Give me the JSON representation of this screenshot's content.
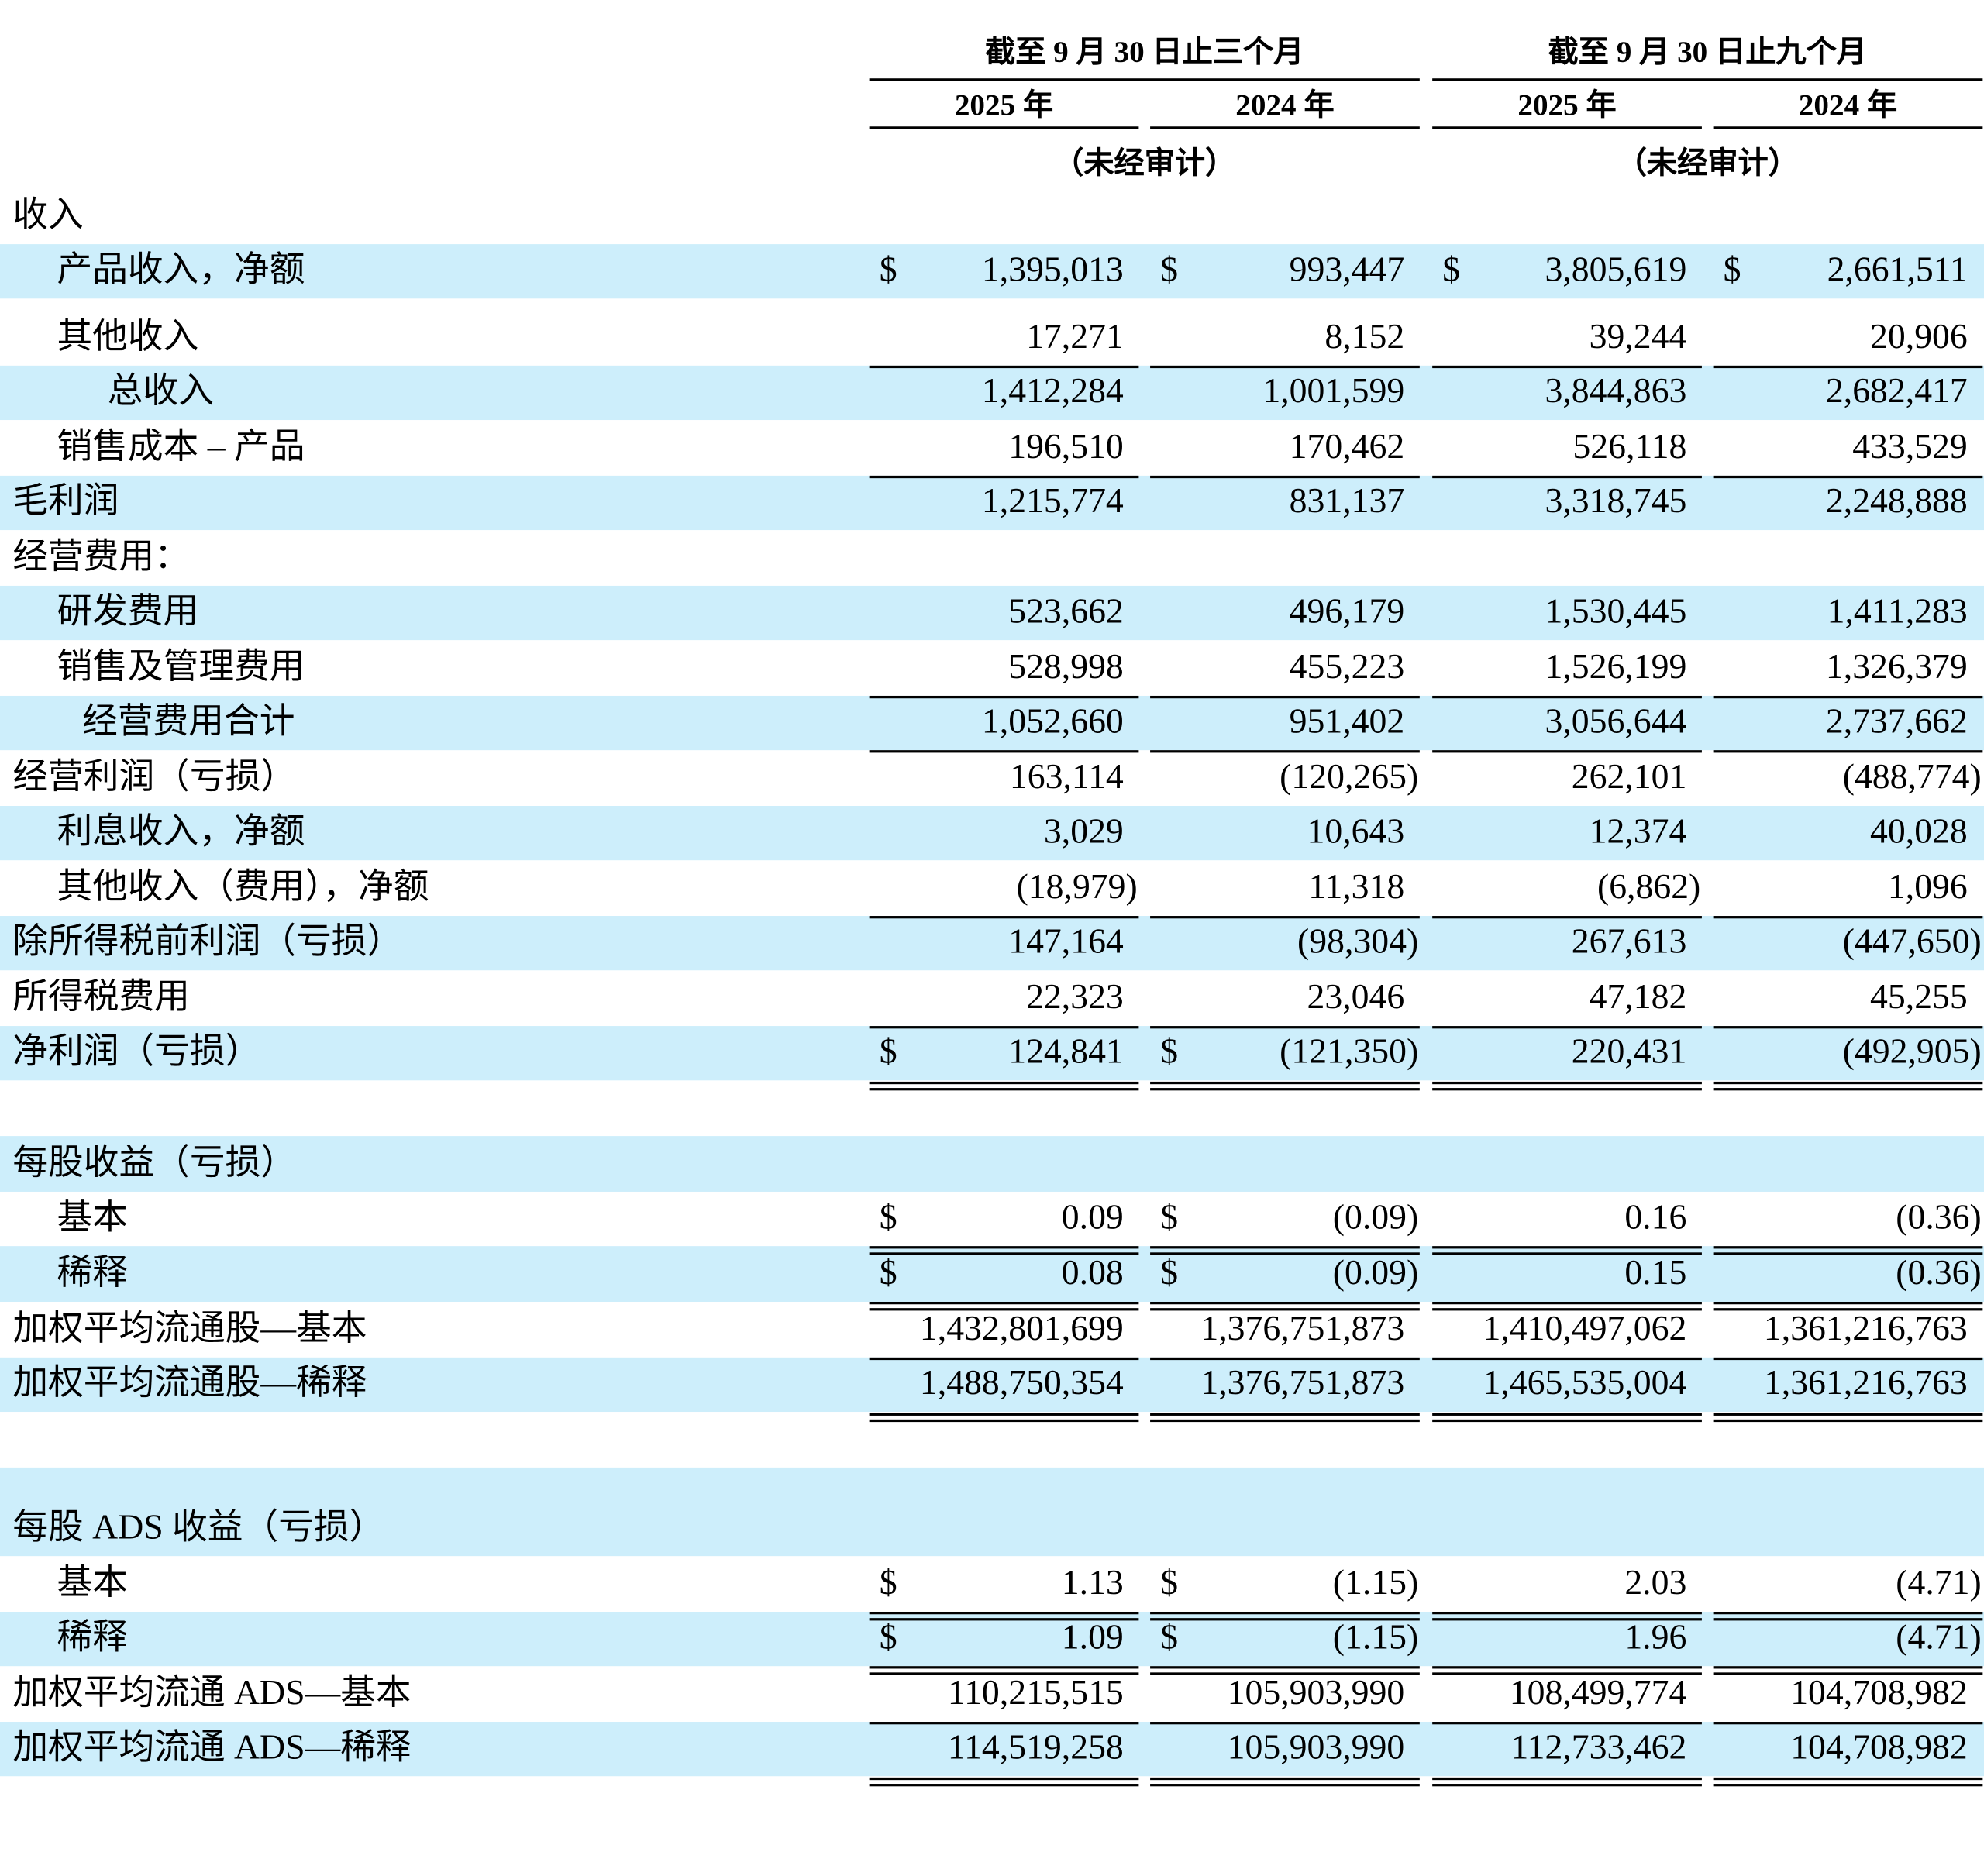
{
  "header": {
    "groups": [
      {
        "title": "截至 9 月 30 日止三个月",
        "years": [
          "2025 年",
          "2024 年"
        ],
        "note": "（未经审计）"
      },
      {
        "title": "截至 9 月 30 日止九个月",
        "years": [
          "2025 年",
          "2024 年"
        ],
        "note": "（未经审计）"
      }
    ]
  },
  "rows": [
    {
      "label": "收入"
    },
    {
      "label": "产品收入，净额",
      "cells": [
        {
          "currency": "$",
          "value": "1,395,013"
        },
        {
          "currency": "$",
          "value": "993,447"
        },
        {
          "currency": "$",
          "value": "3,805,619"
        },
        {
          "currency": "$",
          "value": "2,661,511"
        }
      ]
    },
    {
      "label": "其他收入",
      "cells": [
        {
          "value": "17,271"
        },
        {
          "value": "8,152"
        },
        {
          "value": "39,244"
        },
        {
          "value": "20,906"
        }
      ]
    },
    {
      "label": "总收入",
      "cells": [
        {
          "value": "1,412,284"
        },
        {
          "value": "1,001,599"
        },
        {
          "value": "3,844,863"
        },
        {
          "value": "2,682,417"
        }
      ]
    },
    {
      "label": "销售成本 – 产品",
      "cells": [
        {
          "value": "196,510"
        },
        {
          "value": "170,462"
        },
        {
          "value": "526,118"
        },
        {
          "value": "433,529"
        }
      ]
    },
    {
      "label": "毛利润",
      "cells": [
        {
          "value": "1,215,774"
        },
        {
          "value": "831,137"
        },
        {
          "value": "3,318,745"
        },
        {
          "value": "2,248,888"
        }
      ]
    },
    {
      "label": "经营费用："
    },
    {
      "label": "研发费用",
      "cells": [
        {
          "value": "523,662"
        },
        {
          "value": "496,179"
        },
        {
          "value": "1,530,445"
        },
        {
          "value": "1,411,283"
        }
      ]
    },
    {
      "label": "销售及管理费用",
      "cells": [
        {
          "value": "528,998"
        },
        {
          "value": "455,223"
        },
        {
          "value": "1,526,199"
        },
        {
          "value": "1,326,379"
        }
      ]
    },
    {
      "label": "经营费用合计",
      "cells": [
        {
          "value": "1,052,660"
        },
        {
          "value": "951,402"
        },
        {
          "value": "3,056,644"
        },
        {
          "value": "2,737,662"
        }
      ]
    },
    {
      "label": "经营利润（亏损）",
      "cells": [
        {
          "value": "163,114"
        },
        {
          "value": "(120,265)"
        },
        {
          "value": "262,101"
        },
        {
          "value": "(488,774)"
        }
      ]
    },
    {
      "label": "利息收入，净额",
      "cells": [
        {
          "value": "3,029"
        },
        {
          "value": "10,643"
        },
        {
          "value": "12,374"
        },
        {
          "value": "40,028"
        }
      ]
    },
    {
      "label": "其他收入（费用），净额",
      "cells": [
        {
          "value": "(18,979)"
        },
        {
          "value": "11,318"
        },
        {
          "value": "(6,862)"
        },
        {
          "value": "1,096"
        }
      ]
    },
    {
      "label": "除所得税前利润（亏损）",
      "cells": [
        {
          "value": "147,164"
        },
        {
          "value": "(98,304)"
        },
        {
          "value": "267,613"
        },
        {
          "value": "(447,650)"
        }
      ]
    },
    {
      "label": "所得税费用",
      "cells": [
        {
          "value": "22,323"
        },
        {
          "value": "23,046"
        },
        {
          "value": "47,182"
        },
        {
          "value": "45,255"
        }
      ]
    },
    {
      "label": "净利润（亏损）",
      "cells": [
        {
          "currency": "$",
          "value": "124,841"
        },
        {
          "currency": "$",
          "value": "(121,350)"
        },
        {
          "value": "220,431"
        },
        {
          "value": "(492,905)"
        }
      ]
    },
    {
      "label": "每股收益（亏损）"
    },
    {
      "label": "基本",
      "cells": [
        {
          "currency": "$",
          "value": "0.09"
        },
        {
          "currency": "$",
          "value": "(0.09)"
        },
        {
          "value": "0.16"
        },
        {
          "value": "(0.36)"
        }
      ]
    },
    {
      "label": "稀释",
      "cells": [
        {
          "currency": "$",
          "value": "0.08"
        },
        {
          "currency": "$",
          "value": "(0.09)"
        },
        {
          "value": "0.15"
        },
        {
          "value": "(0.36)"
        }
      ]
    },
    {
      "label": "加权平均流通股—基本",
      "cells": [
        {
          "value": "1,432,801,699"
        },
        {
          "value": "1,376,751,873"
        },
        {
          "value": "1,410,497,062"
        },
        {
          "value": "1,361,216,763"
        }
      ]
    },
    {
      "label": "加权平均流通股—稀释",
      "cells": [
        {
          "value": "1,488,750,354"
        },
        {
          "value": "1,376,751,873"
        },
        {
          "value": "1,465,535,004"
        },
        {
          "value": "1,361,216,763"
        }
      ]
    },
    {
      "label": "每股 ADS 收益（亏损）"
    },
    {
      "label": "基本",
      "cells": [
        {
          "currency": "$",
          "value": "1.13"
        },
        {
          "currency": "$",
          "value": "(1.15)"
        },
        {
          "value": "2.03"
        },
        {
          "value": "(4.71)"
        }
      ]
    },
    {
      "label": "稀释",
      "cells": [
        {
          "currency": "$",
          "value": "1.09"
        },
        {
          "currency": "$",
          "value": "(1.15)"
        },
        {
          "value": "1.96"
        },
        {
          "value": "(4.71)"
        }
      ]
    },
    {
      "label": "加权平均流通 ADS—基本",
      "cells": [
        {
          "value": "110,215,515"
        },
        {
          "value": "105,903,990"
        },
        {
          "value": "108,499,774"
        },
        {
          "value": "104,708,982"
        }
      ]
    },
    {
      "label": "加权平均流通 ADS—稀释",
      "cells": [
        {
          "value": "114,519,258"
        },
        {
          "value": "105,903,990"
        },
        {
          "value": "112,733,462"
        },
        {
          "value": "104,708,982"
        }
      ]
    }
  ]
}
